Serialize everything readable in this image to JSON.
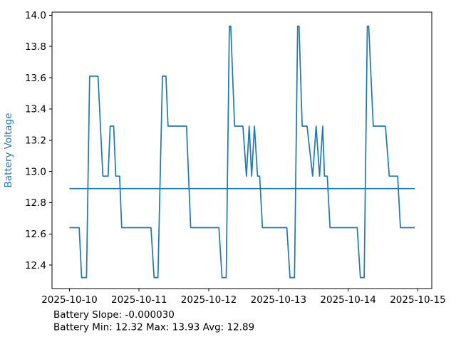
{
  "figure": {
    "background": "#ffffff"
  },
  "colors": {
    "line": "#1f77b4",
    "axis": "#000000",
    "tick_label": "#000000",
    "ylabel": "#1f77b4"
  },
  "chart_data": {
    "type": "line",
    "title": "",
    "xlabel": "",
    "ylabel": "Battery Voltage",
    "x_unit": "days since 2025-10-10 00:00",
    "xlim": [
      -0.25,
      5.2
    ],
    "ylim": [
      12.25,
      14.02
    ],
    "grid": false,
    "legend": null,
    "x_ticks": {
      "values": [
        0,
        1,
        2,
        3,
        4,
        5
      ],
      "labels": [
        "2025-10-10",
        "2025-10-11",
        "2025-10-12",
        "2025-10-13",
        "2025-10-14",
        "2025-10-15"
      ]
    },
    "y_ticks": [
      12.4,
      12.6,
      12.8,
      13.0,
      13.2,
      13.4,
      13.6,
      13.8,
      14.0
    ],
    "annotations": [
      "Battery Slope: -0.000030",
      "Battery Min: 12.32 Max: 13.93 Avg: 12.89"
    ],
    "stats": {
      "slope": -3e-05,
      "min": 12.32,
      "max": 13.93,
      "avg": 12.89
    },
    "series": [
      {
        "name": "battery-voltage-series",
        "color": "#1f77b4",
        "points": [
          [
            0.0,
            12.64
          ],
          [
            0.14,
            12.64
          ],
          [
            0.175,
            12.32
          ],
          [
            0.245,
            12.32
          ],
          [
            0.29,
            13.61
          ],
          [
            0.41,
            13.61
          ],
          [
            0.48,
            12.97
          ],
          [
            0.555,
            12.97
          ],
          [
            0.585,
            13.29
          ],
          [
            0.635,
            13.29
          ],
          [
            0.665,
            12.97
          ],
          [
            0.72,
            12.97
          ],
          [
            0.75,
            12.64
          ],
          [
            1.17,
            12.64
          ],
          [
            1.215,
            12.32
          ],
          [
            1.27,
            12.32
          ],
          [
            1.335,
            13.61
          ],
          [
            1.385,
            13.61
          ],
          [
            1.415,
            13.29
          ],
          [
            1.68,
            13.29
          ],
          [
            1.74,
            12.64
          ],
          [
            2.145,
            12.64
          ],
          [
            2.19,
            12.32
          ],
          [
            2.25,
            12.32
          ],
          [
            2.295,
            13.93
          ],
          [
            2.315,
            13.93
          ],
          [
            2.37,
            13.29
          ],
          [
            2.49,
            13.29
          ],
          [
            2.54,
            12.97
          ],
          [
            2.58,
            13.29
          ],
          [
            2.615,
            12.97
          ],
          [
            2.655,
            13.29
          ],
          [
            2.7,
            12.97
          ],
          [
            2.73,
            12.97
          ],
          [
            2.77,
            12.64
          ],
          [
            3.12,
            12.64
          ],
          [
            3.165,
            12.32
          ],
          [
            3.23,
            12.32
          ],
          [
            3.275,
            13.93
          ],
          [
            3.295,
            13.93
          ],
          [
            3.34,
            13.29
          ],
          [
            3.41,
            13.29
          ],
          [
            3.49,
            12.97
          ],
          [
            3.54,
            13.29
          ],
          [
            3.59,
            12.97
          ],
          [
            3.635,
            13.29
          ],
          [
            3.66,
            12.97
          ],
          [
            3.7,
            12.97
          ],
          [
            3.74,
            12.64
          ],
          [
            4.13,
            12.64
          ],
          [
            4.175,
            12.32
          ],
          [
            4.23,
            12.32
          ],
          [
            4.275,
            13.93
          ],
          [
            4.295,
            13.93
          ],
          [
            4.36,
            13.29
          ],
          [
            4.535,
            13.29
          ],
          [
            4.59,
            12.97
          ],
          [
            4.71,
            12.97
          ],
          [
            4.75,
            12.64
          ],
          [
            4.955,
            12.64
          ]
        ]
      },
      {
        "name": "average-line-series",
        "color": "#1f77b4",
        "points": [
          [
            0.0,
            12.89
          ],
          [
            4.955,
            12.89
          ]
        ]
      }
    ]
  }
}
